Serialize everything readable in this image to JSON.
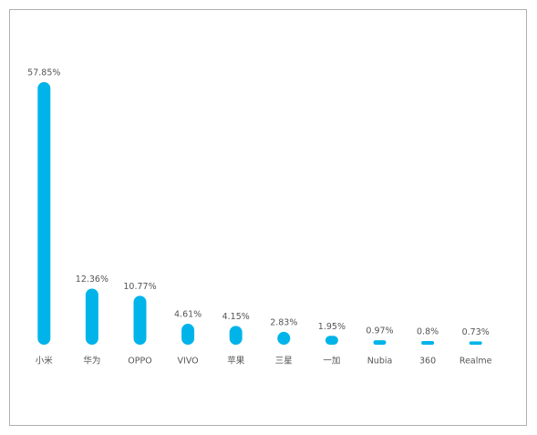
{
  "chart_data": {
    "type": "bar",
    "categories": [
      "小米",
      "华为",
      "OPPO",
      "VIVO",
      "苹果",
      "三星",
      "一加",
      "Nubia",
      "360",
      "Realme"
    ],
    "values": [
      57.85,
      12.36,
      10.77,
      4.61,
      4.15,
      2.83,
      1.95,
      0.97,
      0.8,
      0.73
    ],
    "value_labels": [
      "57.85%",
      "12.36%",
      "10.77%",
      "4.61%",
      "4.15%",
      "2.83%",
      "1.95%",
      "0.97%",
      "0.8%",
      "0.73%"
    ],
    "color": "#00b4ea"
  }
}
